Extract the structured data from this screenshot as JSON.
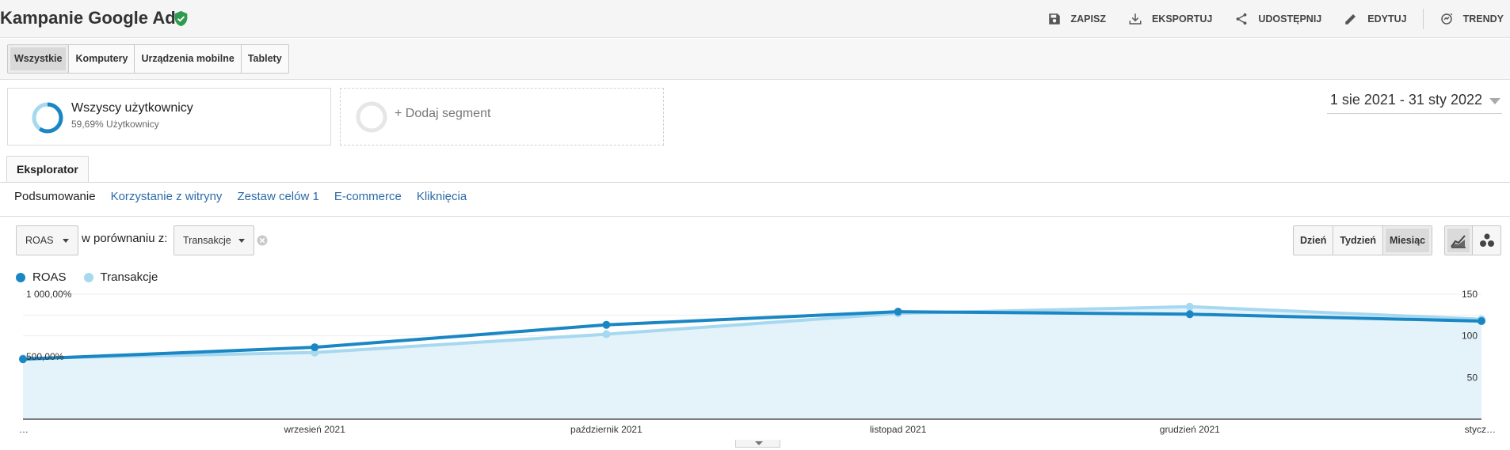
{
  "header": {
    "title": "Kampanie Google Ads",
    "verified_icon": "shield-check-icon",
    "actions": [
      {
        "label": "ZAPISZ",
        "icon": "save-icon"
      },
      {
        "label": "EKSPORTUJ",
        "icon": "download-icon"
      },
      {
        "label": "UDOSTĘPNIJ",
        "icon": "share-icon"
      },
      {
        "label": "EDYTUJ",
        "icon": "pencil-icon"
      },
      {
        "label": "TRENDY",
        "icon": "trends-icon"
      }
    ]
  },
  "device_tabs": [
    {
      "label": "Wszystkie",
      "active": true
    },
    {
      "label": "Komputery",
      "active": false
    },
    {
      "label": "Urządzenia mobilne",
      "active": false
    },
    {
      "label": "Tablety",
      "active": false
    }
  ],
  "segments": {
    "active": {
      "name": "Wszyscy użytkownicy",
      "subtitle": "59,69% Użytkownicy",
      "share": 0.5969
    },
    "add_label": "+ Dodaj segment"
  },
  "date_range": "1 sie 2021 - 31 sty 2022",
  "explorer": {
    "tab_label": "Eksplorator",
    "subtabs": [
      {
        "label": "Podsumowanie",
        "active": true
      },
      {
        "label": "Korzystanie z witryny",
        "active": false
      },
      {
        "label": "Zestaw celów 1",
        "active": false
      },
      {
        "label": "E-commerce",
        "active": false
      },
      {
        "label": "Kliknięcia",
        "active": false
      }
    ]
  },
  "controls": {
    "primary_metric": "ROAS",
    "compare_label": "w porównaniu z:",
    "compare_metric": "Transakcje",
    "periods": [
      {
        "label": "Dzień",
        "active": false
      },
      {
        "label": "Tydzień",
        "active": false
      },
      {
        "label": "Miesiąc",
        "active": true
      }
    ],
    "chart_types": [
      "line-chart-icon",
      "bubble-chart-icon"
    ]
  },
  "colors": {
    "roas": "#1a87c4",
    "transakcje": "#a6d8ef",
    "area_fill": "#e4f2fa",
    "link": "#2b6ba8",
    "verified": "#2e9b4f"
  },
  "chart_data": {
    "type": "line",
    "x": [
      "…",
      "wrzesień 2021",
      "październik 2021",
      "listopad 2021",
      "grudzień 2021",
      "stycz…"
    ],
    "series": [
      {
        "name": "ROAS",
        "axis": "left",
        "values": [
          480,
          575,
          755,
          860,
          840,
          785
        ]
      },
      {
        "name": "Transakcje",
        "axis": "right",
        "values": [
          73,
          80,
          102,
          127,
          135,
          120
        ]
      }
    ],
    "y_left": {
      "ticks": [
        "1 000,00%",
        "500,00%"
      ],
      "values": [
        1000,
        500
      ],
      "range": [
        0,
        1000
      ]
    },
    "y_right": {
      "ticks": [
        "150",
        "100",
        "50"
      ],
      "values": [
        150,
        100,
        50
      ],
      "range": [
        0,
        150
      ]
    },
    "grid": true,
    "legend": "top-left"
  }
}
